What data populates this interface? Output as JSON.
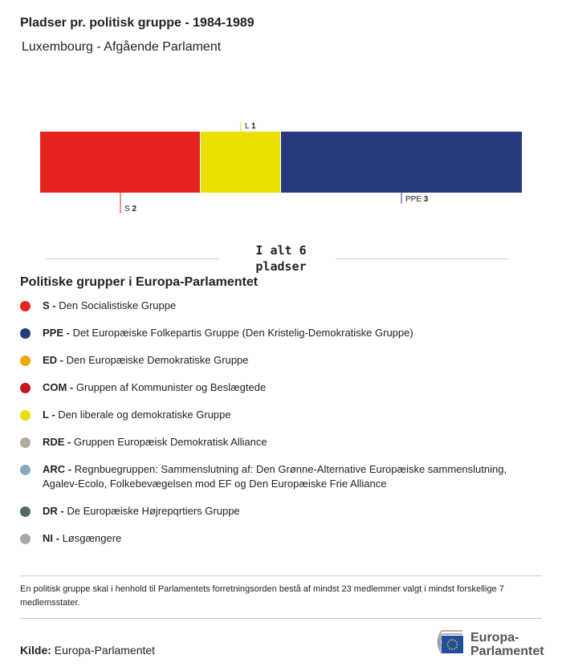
{
  "title": "Pladser pr. politisk gruppe - 1984-1989",
  "subtitle": "Luxembourg - Afgående Parlament",
  "chart_data": {
    "type": "bar",
    "orientation": "stacked-horizontal",
    "categories": [
      "S",
      "L",
      "PPE"
    ],
    "values": [
      2,
      1,
      3
    ],
    "colors": [
      "#e52421",
      "#ebdf00",
      "#283a7d"
    ],
    "total_label": "I alt 6 pladser"
  },
  "legend": {
    "title": "Politiske grupper i Europa-Parlamentet",
    "items": [
      {
        "abbr": "S -",
        "label": "Den Socialistiske Gruppe",
        "color": "#e52421"
      },
      {
        "abbr": "PPE -",
        "label": "Det Europæiske Folkepartis Gruppe (Den Kristelig-Demokratiske Gruppe)",
        "color": "#283a7d"
      },
      {
        "abbr": "ED -",
        "label": "Den Europæiske Demokratiske Gruppe",
        "color": "#eda800"
      },
      {
        "abbr": "COM -",
        "label": "Gruppen af Kommunister og Beslægtede",
        "color": "#c4161c"
      },
      {
        "abbr": "L -",
        "label": "Den liberale og demokratiske Gruppe",
        "color": "#ebdf00"
      },
      {
        "abbr": "RDE -",
        "label": "Gruppen Europæisk Demokratisk Alliance",
        "color": "#b5a99a"
      },
      {
        "abbr": "ARC -",
        "label": "Regnbuegruppen: Sammenslutning af: Den Grønne-Alternative Europæiske sammenslutning, Agalev-Ecolo, Folkebevægelsen mod EF og Den Europæiske Frie Alliance",
        "color": "#86aac2"
      },
      {
        "abbr": "DR -",
        "label": "De Europæiske Højrepqrtiers Gruppe",
        "color": "#52695e"
      },
      {
        "abbr": "NI -",
        "label": "Løsgængere",
        "color": "#a8a8a8"
      }
    ]
  },
  "note": "En politisk gruppe skal i henhold til Parlamentets forretningsorden bestå af mindst 23 medlemmer valgt i mindst forskellige 7 medlemsstater.",
  "source": {
    "label": "Kilde:",
    "value": "Europa-Parlamentet"
  },
  "logo": {
    "text": "Europa-Parlamentet"
  }
}
